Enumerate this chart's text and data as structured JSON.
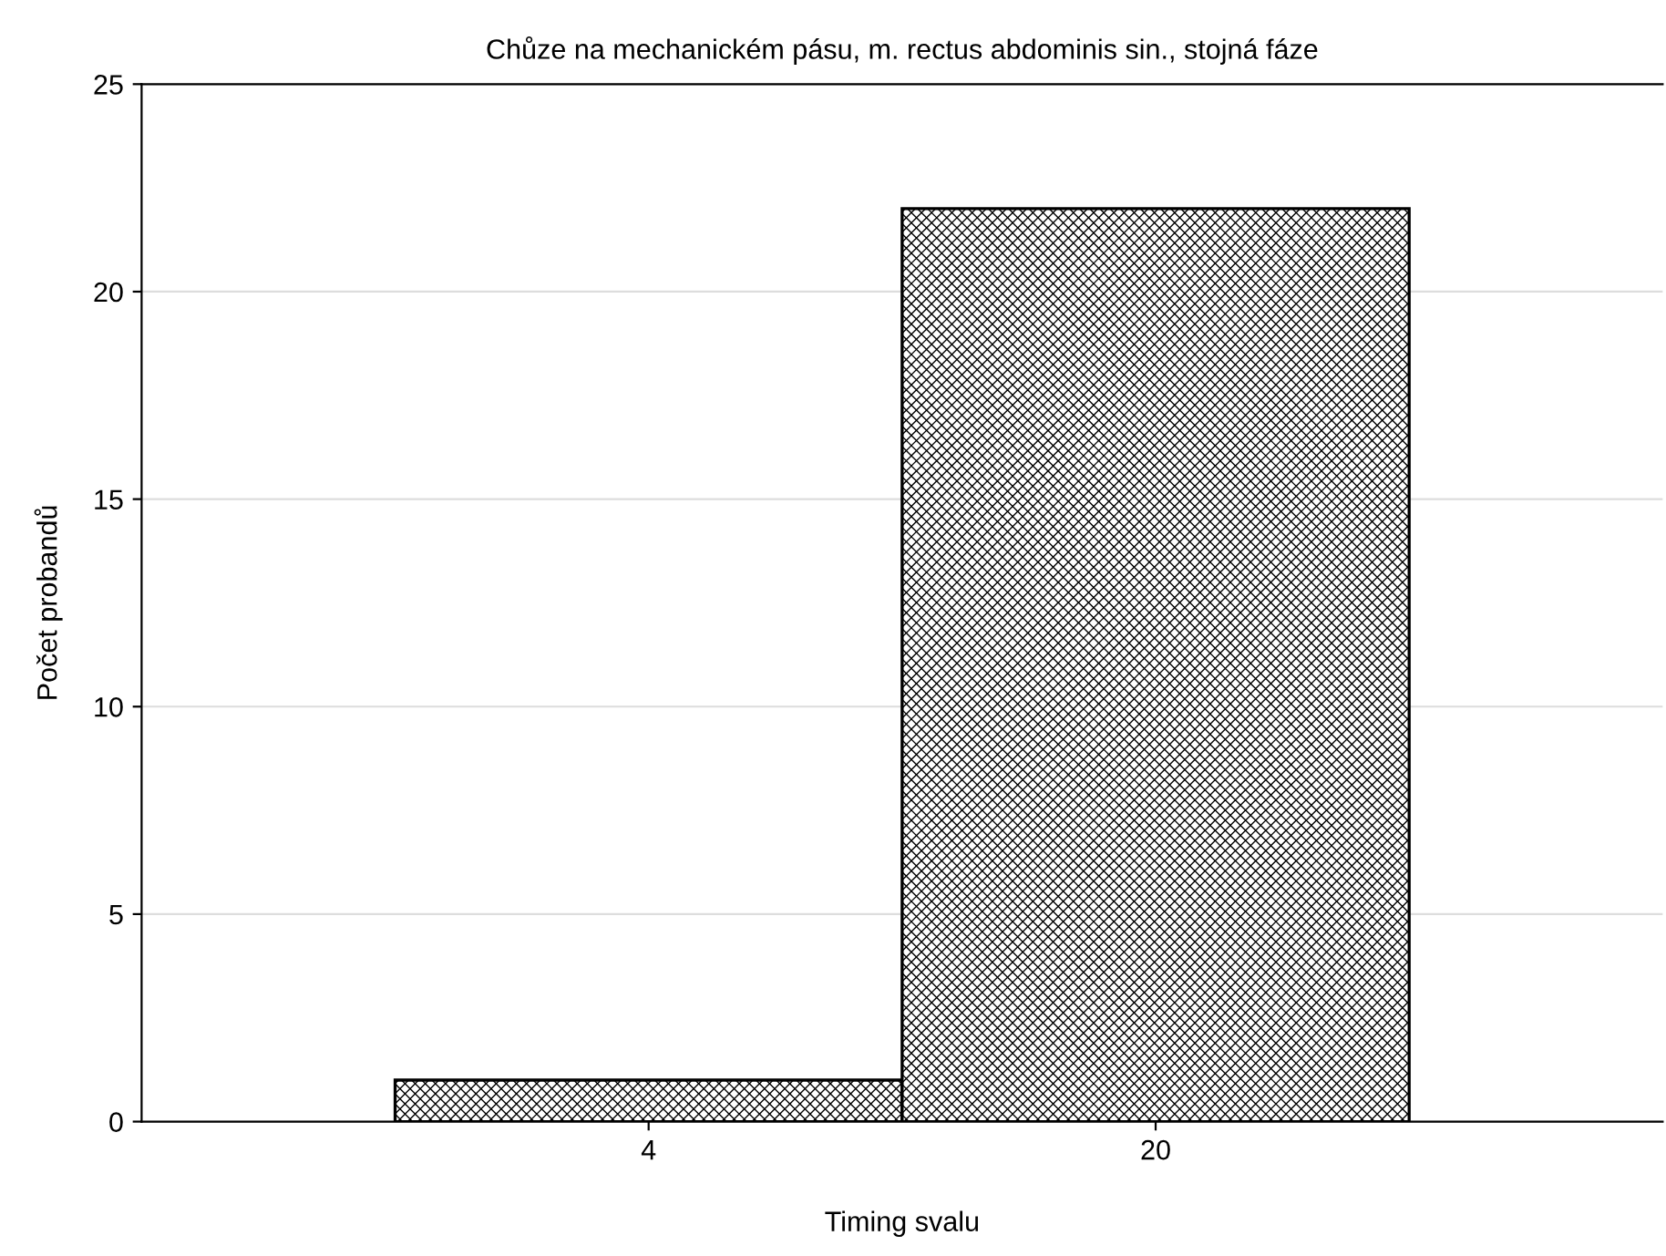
{
  "chart_data": {
    "type": "bar",
    "title": "Chůze na mechanickém pásu, m. rectus abdominis sin., stojná fáze",
    "xlabel": "Timing svalu",
    "ylabel": "Počet probandů",
    "categories": [
      "4",
      "20"
    ],
    "values": [
      1,
      22
    ],
    "color": "#000000",
    "ylim": [
      0,
      25
    ],
    "yticks": [
      0,
      5,
      10,
      15,
      20,
      25
    ],
    "grid": "y"
  }
}
